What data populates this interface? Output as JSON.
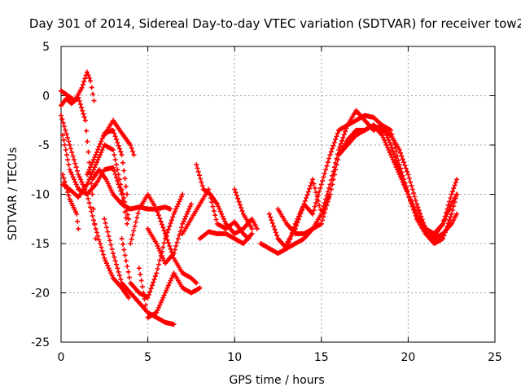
{
  "chart_data": {
    "type": "scatter",
    "title": "Day 301 of 2014, Sidereal Day-to-day VTEC variation (SDTVAR) for receiver tow2",
    "xlabel": "GPS time / hours",
    "ylabel": "SDTVAR / TECUs",
    "xlim": [
      0,
      25
    ],
    "ylim": [
      -25,
      5
    ],
    "xticks": [
      0,
      5,
      10,
      15,
      20,
      25
    ],
    "yticks": [
      -25,
      -20,
      -15,
      -10,
      -5,
      0,
      5
    ],
    "grid": true,
    "marker": "+",
    "color": "#ff0000",
    "series": [
      {
        "name": "s1",
        "x": [
          0.0,
          0.4,
          0.8,
          1.2,
          1.5,
          1.7,
          1.9
        ],
        "y": [
          0.5,
          0.0,
          -0.5,
          0.8,
          2.4,
          1.5,
          -0.5
        ]
      },
      {
        "name": "s2",
        "x": [
          0.0,
          0.3,
          0.6,
          1.0,
          1.4,
          1.8,
          2.0
        ],
        "y": [
          -1.0,
          -0.3,
          -0.8,
          -0.2,
          -2.5,
          -10.0,
          -14.5
        ]
      },
      {
        "name": "s3",
        "x": [
          0.0,
          0.5,
          1.0,
          1.5,
          2.0,
          2.5,
          3.0,
          3.5,
          3.9
        ],
        "y": [
          -2.0,
          -5.0,
          -8.0,
          -10.0,
          -13.5,
          -16.5,
          -18.5,
          -19.5,
          -20.5
        ]
      },
      {
        "name": "s4",
        "x": [
          0.1,
          0.5,
          0.9,
          1.0
        ],
        "y": [
          -8.0,
          -10.5,
          -12.0,
          -13.5
        ]
      },
      {
        "name": "s5",
        "x": [
          0.1,
          0.5,
          1.0,
          1.5,
          2.0,
          2.5,
          3.0,
          3.5,
          3.8
        ],
        "y": [
          -4.0,
          -7.5,
          -9.5,
          -10.0,
          -9.0,
          -7.5,
          -7.3,
          -10.0,
          -13.0
        ]
      },
      {
        "name": "s6",
        "x": [
          1.5,
          2.0,
          2.5,
          3.0,
          3.5,
          3.8
        ],
        "y": [
          -8.0,
          -6.0,
          -3.8,
          -3.5,
          -6.0,
          -10.0
        ]
      },
      {
        "name": "s7",
        "x": [
          0.1,
          0.5,
          1.0,
          1.5,
          2.0,
          2.5,
          3.0,
          3.5,
          3.9
        ],
        "y": [
          -9.0,
          -9.5,
          -10.3,
          -9.0,
          -7.0,
          -5.0,
          -5.5,
          -9.5,
          -12.5
        ]
      },
      {
        "name": "s8",
        "x": [
          2.5,
          3.0,
          3.5,
          4.0,
          4.2
        ],
        "y": [
          -4.0,
          -2.5,
          -3.8,
          -5.0,
          -6.0
        ]
      },
      {
        "name": "s9",
        "x": [
          1.8,
          2.2,
          2.6,
          3.0,
          3.5,
          4.0,
          4.5,
          5.0,
          5.5,
          6.0,
          6.3
        ],
        "y": [
          -8.5,
          -7.5,
          -8.5,
          -10.0,
          -11.0,
          -11.5,
          -11.3,
          -11.5,
          -11.5,
          -11.3,
          -11.5
        ]
      },
      {
        "name": "s10",
        "x": [
          2.5,
          3.0,
          3.5,
          4.0,
          4.5,
          5.0,
          5.5,
          6.0,
          6.5
        ],
        "y": [
          -12.5,
          -16.0,
          -19.0,
          -20.0,
          -21.0,
          -22.0,
          -22.5,
          -23.0,
          -23.2
        ]
      },
      {
        "name": "s11",
        "x": [
          4.0,
          4.5,
          5.0,
          5.5,
          6.0,
          6.5,
          7.0,
          7.5,
          7.8
        ],
        "y": [
          -15.0,
          -11.5,
          -10.0,
          -11.5,
          -14.0,
          -16.5,
          -18.0,
          -18.5,
          -19.0
        ]
      },
      {
        "name": "s12",
        "x": [
          3.5,
          4.0,
          4.5,
          5.0,
          5.5,
          6.0,
          6.5,
          7.0
        ],
        "y": [
          -14.5,
          -19.0,
          -20.0,
          -20.5,
          -18.0,
          -14.5,
          -12.0,
          -10.0
        ]
      },
      {
        "name": "s13",
        "x": [
          4.5,
          5.0,
          5.5,
          6.0,
          6.5,
          7.0,
          7.5,
          8.0
        ],
        "y": [
          -17.5,
          -22.5,
          -22.0,
          -20.0,
          -18.0,
          -19.5,
          -20.0,
          -19.5
        ]
      },
      {
        "name": "s14",
        "x": [
          5.0,
          5.5,
          6.0,
          6.5,
          7.0,
          7.5
        ],
        "y": [
          -13.5,
          -15.0,
          -17.0,
          -16.0,
          -13.0,
          -11.0
        ]
      },
      {
        "name": "s15",
        "x": [
          7.0,
          7.5,
          8.0,
          8.5,
          9.0,
          9.5,
          10.0,
          10.5,
          10.8
        ],
        "y": [
          -14.0,
          -12.5,
          -11.0,
          -9.5,
          -13.0,
          -13.5,
          -12.8,
          -14.0,
          -14.5
        ]
      },
      {
        "name": "s16",
        "x": [
          7.8,
          8.2,
          8.6,
          9.0,
          9.5,
          10.0,
          10.5,
          11.0,
          11.3
        ],
        "y": [
          -7.0,
          -9.5,
          -10.0,
          -11.0,
          -13.0,
          -14.0,
          -13.5,
          -12.5,
          -13.5
        ]
      },
      {
        "name": "s17",
        "x": [
          8.0,
          8.5,
          9.0,
          9.5,
          10.0,
          10.5,
          11.0
        ],
        "y": [
          -14.5,
          -13.8,
          -14.0,
          -14.0,
          -14.5,
          -15.0,
          -14.0
        ]
      },
      {
        "name": "s18",
        "x": [
          10.0,
          10.5,
          11.0
        ],
        "y": [
          -9.5,
          -12.0,
          -13.5
        ]
      },
      {
        "name": "s19",
        "x": [
          11.5,
          12.0,
          12.5,
          13.0,
          13.5,
          14.0,
          14.5,
          15.0,
          15.5,
          16.0,
          16.5,
          17.0,
          17.5,
          18.0,
          18.5,
          19.0,
          19.5,
          20.0,
          20.5,
          21.0,
          21.5,
          22.0,
          22.5,
          22.8
        ],
        "y": [
          -15.0,
          -15.5,
          -16.0,
          -15.5,
          -13.0,
          -11.0,
          -12.0,
          -9.0,
          -6.0,
          -3.5,
          -3.0,
          -2.5,
          -2.0,
          -2.2,
          -3.0,
          -5.0,
          -7.5,
          -10.0,
          -12.5,
          -14.0,
          -14.2,
          -13.0,
          -10.0,
          -8.5
        ]
      },
      {
        "name": "s20",
        "x": [
          12.0,
          12.5,
          13.0,
          13.5,
          14.0,
          14.5,
          15.0,
          15.5,
          16.0,
          16.5,
          17.0,
          17.5,
          18.0,
          18.5,
          19.0,
          19.5,
          20.0,
          20.5,
          21.0,
          21.5,
          22.0,
          22.5,
          22.8
        ],
        "y": [
          -12.0,
          -14.5,
          -15.5,
          -15.0,
          -14.5,
          -13.5,
          -12.0,
          -9.0,
          -5.5,
          -3.0,
          -1.5,
          -2.5,
          -3.5,
          -3.0,
          -3.5,
          -7.0,
          -10.0,
          -12.5,
          -14.0,
          -15.0,
          -14.5,
          -12.0,
          -10.0
        ]
      },
      {
        "name": "s21",
        "x": [
          13.0,
          13.5,
          14.0,
          14.5,
          15.0,
          15.5,
          16.0,
          16.5,
          17.0,
          17.5,
          18.0,
          18.5,
          19.0,
          19.5,
          20.0,
          20.5,
          21.0,
          21.5,
          22.0,
          22.5,
          22.8
        ],
        "y": [
          -15.0,
          -13.5,
          -11.0,
          -8.5,
          -12.0,
          -10.0,
          -6.0,
          -4.5,
          -3.5,
          -3.5,
          -3.0,
          -3.5,
          -4.0,
          -5.5,
          -8.0,
          -11.0,
          -13.5,
          -14.0,
          -13.0,
          -11.0,
          -10.0
        ]
      },
      {
        "name": "s22",
        "x": [
          12.5,
          13.0,
          13.5,
          14.0,
          14.5,
          15.0,
          15.5,
          16.0,
          16.5,
          17.0,
          17.5,
          18.0,
          18.5,
          19.0,
          19.5,
          20.0,
          20.5,
          21.0,
          21.5,
          22.0,
          22.5,
          22.8
        ],
        "y": [
          -11.5,
          -13.0,
          -14.0,
          -14.0,
          -13.5,
          -13.0,
          -10.0,
          -6.0,
          -5.0,
          -4.0,
          -3.5,
          -3.0,
          -4.0,
          -6.0,
          -8.0,
          -10.0,
          -12.0,
          -13.5,
          -14.5,
          -14.0,
          -13.0,
          -12.0
        ]
      }
    ]
  }
}
